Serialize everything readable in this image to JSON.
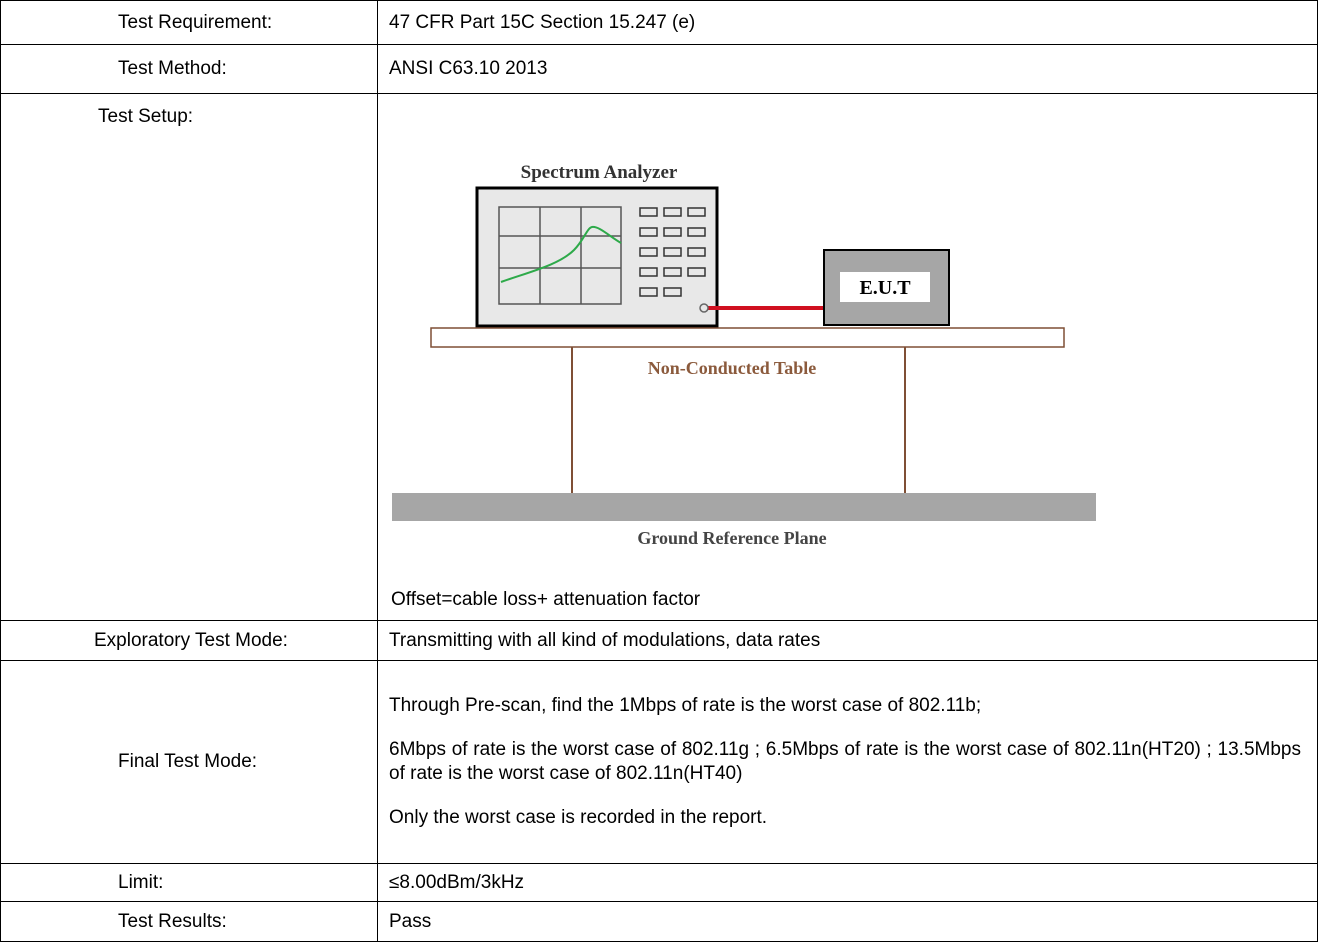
{
  "rows": [
    {
      "label": "Test Requirement:",
      "value": "47 CFR Part 15C Section 15.247 (e)"
    },
    {
      "label": "Test Method:",
      "value": "ANSI C63.10 2013"
    },
    {
      "label": "Test Setup:",
      "diagram": {
        "analyzer_label": "Spectrum Analyzer",
        "eut_label": "E.U.T",
        "table_label": "Non-Conducted Table",
        "ground_label": "Ground Reference Plane"
      },
      "note": "Offset=cable loss+ attenuation factor"
    },
    {
      "label": "Exploratory Test Mode:",
      "value": "Transmitting with all kind of modulations, data rates"
    },
    {
      "label": "Final Test Mode:",
      "paragraphs": [
        "Through Pre-scan, find the 1Mbps of rate is the worst case of 802.11b;",
        "6Mbps of rate is the worst case of 802.11g ; 6.5Mbps of rate is the worst case of 802.11n(HT20) ; 13.5Mbps of rate is the worst case of 802.11n(HT40)",
        "Only the worst case is recorded in the report."
      ]
    },
    {
      "label": "Limit:",
      "value": "≤8.00dBm/3kHz"
    },
    {
      "label": "Test Results:",
      "value": "Pass"
    }
  ]
}
